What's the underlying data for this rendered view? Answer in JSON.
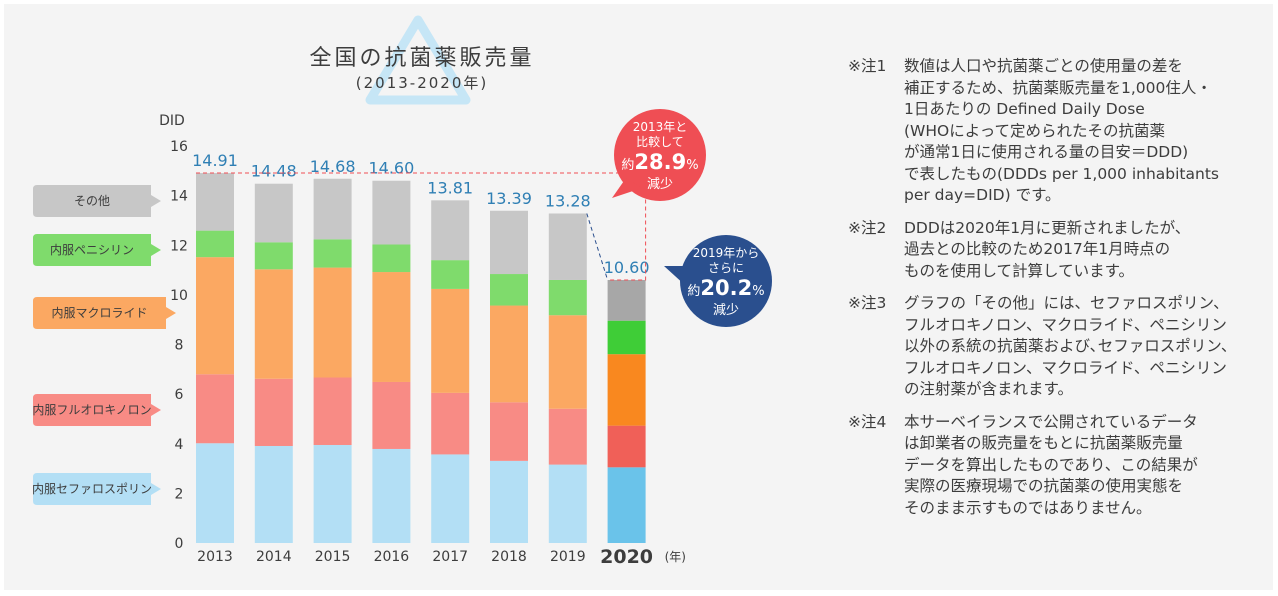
{
  "title": "全国の抗菌薬販売量",
  "subtitle": "(2013-2020年)",
  "chart_data": {
    "type": "bar",
    "stacked": true,
    "ylabel": "DID",
    "ylim": [
      0,
      16
    ],
    "yticks": [
      "0",
      "2",
      "4",
      "6",
      "8",
      "10",
      "12",
      "14",
      "16"
    ],
    "categories": [
      "2013",
      "2014",
      "2015",
      "2016",
      "2017",
      "2018",
      "2019",
      "2020"
    ],
    "x_unit": "(年)",
    "totals": [
      "14.91",
      "14.48",
      "14.68",
      "14.60",
      "13.81",
      "13.39",
      "13.28",
      "10.60"
    ],
    "series": [
      {
        "name": "内服セファロスポリン",
        "color": "#b3dff5",
        "highlight": "#6ac3ea",
        "values": [
          4.02,
          3.91,
          3.95,
          3.79,
          3.57,
          3.31,
          3.16,
          3.05
        ]
      },
      {
        "name": "内服フルオロキノロン",
        "color": "#f88b85",
        "highlight": "#f06058",
        "values": [
          2.78,
          2.71,
          2.72,
          2.7,
          2.48,
          2.36,
          2.25,
          1.68
        ]
      },
      {
        "name": "内服マクロライド",
        "color": "#fba862",
        "highlight": "#f9881f",
        "values": [
          4.72,
          4.41,
          4.43,
          4.43,
          4.19,
          3.9,
          3.77,
          2.88
        ]
      },
      {
        "name": "内服ペニシリン",
        "color": "#7fdb6c",
        "highlight": "#3fcd37",
        "values": [
          1.07,
          1.09,
          1.14,
          1.11,
          1.16,
          1.27,
          1.42,
          1.35
        ]
      },
      {
        "name": "その他",
        "color": "#c7c7c7",
        "highlight": "#a7a7a7",
        "values": [
          2.32,
          2.36,
          2.44,
          2.57,
          2.41,
          2.55,
          2.68,
          1.64
        ]
      }
    ],
    "annotations": [
      {
        "lines": [
          "2013年と",
          "比較して"
        ],
        "prefix": "約",
        "value": "28.9",
        "unit": "%",
        "suffix": "減少",
        "color": "#ef4e54"
      },
      {
        "lines": [
          "2019年から",
          "さらに"
        ],
        "prefix": "約",
        "value": "20.2",
        "unit": "%",
        "suffix": "減少",
        "color": "#2a4f8e"
      }
    ]
  },
  "notes": [
    {
      "label": "※注1",
      "first": "数値は人口や抗菌薬ごとの使用量の差を",
      "rest": [
        "補正するため、抗菌薬販売量を1,000住人・",
        "1日あたりの Defined Daily Dose",
        "(WHOによって定められたその抗菌薬",
        "が通常1日に使用される量の目安＝DDD)",
        "で表したもの(DDDs per 1,000 inhabitants",
        "per day=DID) です。"
      ]
    },
    {
      "label": "※注2",
      "first": "DDDは2020年1月に更新されましたが、",
      "rest": [
        "過去との比較のため2017年1月時点の",
        "ものを使用して計算しています。"
      ]
    },
    {
      "label": "※注3",
      "first": "グラフの「その他」には、セファロスポリン、",
      "rest": [
        "フルオロキノロン、マクロライド、ペニシリン",
        "以外の系統の抗菌薬および､セファロスポリン、",
        "フルオロキノロン、マクロライド、ペニシリン",
        "の注射薬が含まれます。"
      ]
    },
    {
      "label": "※注4",
      "first": "本サーベイランスで公開されているデータ",
      "rest": [
        "は卸業者の販売量をもとに抗菌薬販売量",
        "データを算出したものであり、この結果が",
        "実際の医療現場での抗菌薬の使用実態を",
        "そのまま示すものではありません。"
      ]
    }
  ]
}
